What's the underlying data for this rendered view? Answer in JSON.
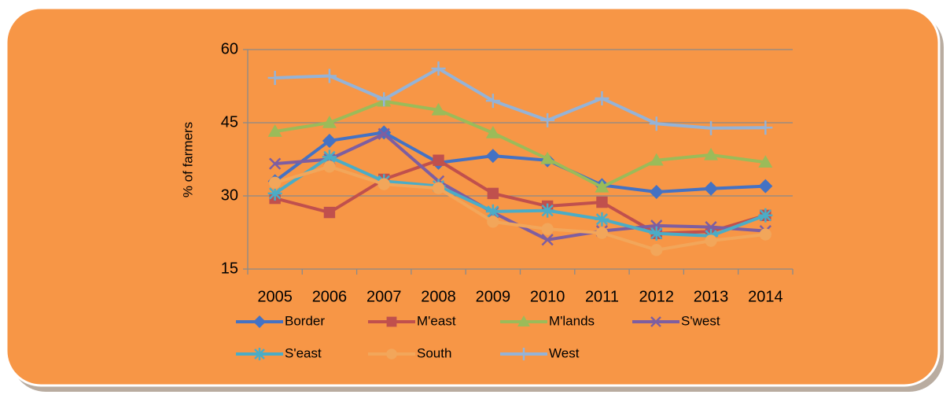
{
  "chart_data": {
    "type": "line",
    "y_label": "% of farmers",
    "categories": [
      "2005",
      "2006",
      "2007",
      "2008",
      "2009",
      "2010",
      "2011",
      "2012",
      "2013",
      "2014"
    ],
    "ylim": [
      15,
      60
    ],
    "yticks": [
      15,
      30,
      45,
      60
    ],
    "grid": true,
    "legend": "bottom",
    "series": [
      {
        "name": "Border",
        "color": "#4472c4",
        "marker": "diamond",
        "values": [
          33,
          41.3,
          43,
          36.8,
          38.2,
          37.3,
          32.2,
          30.8,
          31.5,
          32
        ]
      },
      {
        "name": "M'east",
        "color": "#c0504d",
        "marker": "square",
        "values": [
          29.5,
          26.6,
          33.4,
          37.3,
          30.5,
          27.9,
          28.7,
          22.3,
          22.7,
          26
        ]
      },
      {
        "name": "M'lands",
        "color": "#9bbb59",
        "marker": "triangle",
        "values": [
          43.2,
          45,
          49.4,
          47.6,
          42.9,
          37.6,
          31.8,
          37.3,
          38.4,
          36.9
        ]
      },
      {
        "name": "S'west",
        "color": "#7e5ea0",
        "marker": "x",
        "values": [
          36.6,
          37.5,
          42.7,
          33,
          26.6,
          21,
          22.8,
          23.9,
          23.6,
          22.8
        ]
      },
      {
        "name": "S'east",
        "color": "#4bacc6",
        "marker": "star",
        "values": [
          30.5,
          38,
          33,
          32,
          26.8,
          27,
          25.2,
          22.3,
          21.8,
          26
        ]
      },
      {
        "name": "South",
        "color": "#f2a65a",
        "marker": "circle",
        "values": [
          32.7,
          36,
          32.4,
          31.6,
          24.7,
          23.2,
          22.4,
          18.9,
          20.8,
          22.1
        ]
      },
      {
        "name": "West",
        "color": "#95b3d7",
        "marker": "plus",
        "values": [
          54.2,
          54.6,
          49.8,
          56.1,
          49.5,
          45.5,
          50,
          44.8,
          43.9,
          44
        ]
      }
    ]
  }
}
